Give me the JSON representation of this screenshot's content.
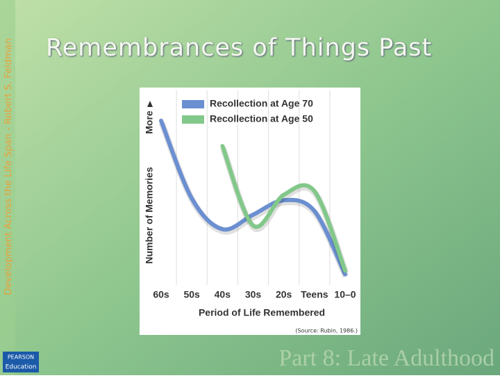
{
  "slide": {
    "title": "Remembrances of Things Past",
    "side_text": "Development Across the Life Span - Robert S. Feldman",
    "footer": "Part 8: Late Adulthood",
    "logo_top": "PEARSON",
    "logo_bottom": "Education"
  },
  "chart_data": {
    "type": "line",
    "y_label": "Number of Memories",
    "y_arrow_label": "More",
    "x_label": "Period of Life Remembered",
    "source": "(Source: Rubin, 1986.)",
    "categories": [
      "60s",
      "50s",
      "40s",
      "30s",
      "20s",
      "Teens",
      "10–0"
    ],
    "series": [
      {
        "name": "Recollection at Age 70",
        "color": "#6b8fd0",
        "values": [
          87,
          44,
          27,
          35,
          43,
          37,
          2
        ]
      },
      {
        "name": "Recollection at Age 50",
        "color": "#82c88a",
        "values": [
          null,
          null,
          73,
          29,
          46,
          48,
          4
        ]
      }
    ],
    "ylim": [
      0,
      100
    ]
  }
}
